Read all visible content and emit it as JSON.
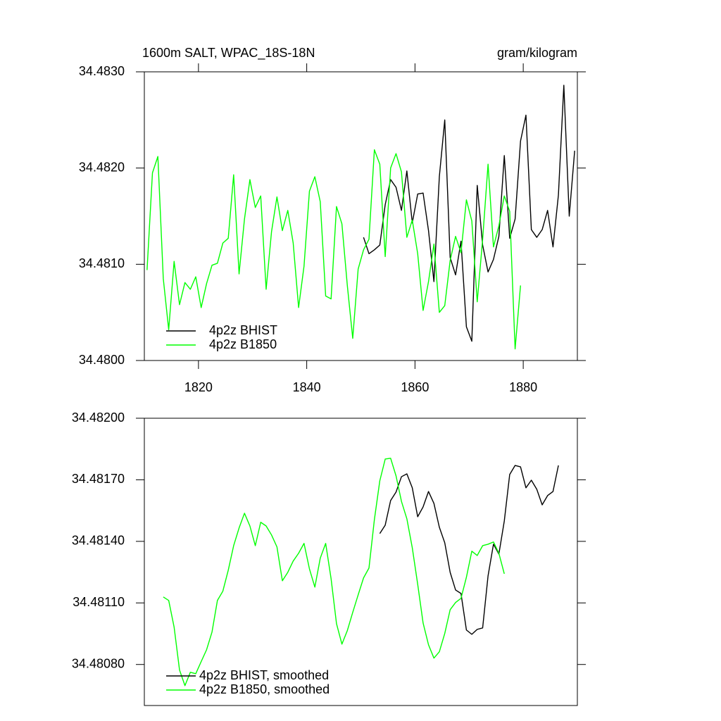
{
  "chart_data": [
    {
      "type": "line",
      "title": "1600m SALT, WPAC_18S-18N",
      "units": "gram/kilogram",
      "xlim": [
        1810,
        1890
      ],
      "xticks": [
        1820,
        1840,
        1860,
        1880
      ],
      "ylim": [
        34.48,
        34.483
      ],
      "yticks": [
        {
          "value": 34.48,
          "label": "34.4800"
        },
        {
          "value": 34.481,
          "label": "34.4810"
        },
        {
          "value": 34.482,
          "label": "34.4820"
        },
        {
          "value": 34.483,
          "label": "34.4830"
        }
      ],
      "legend": "lower left",
      "series": [
        {
          "name": "4p2z BHIST",
          "color": "#000000",
          "x": [
            1850.5,
            1851.5,
            1852.5,
            1853.5,
            1854.5,
            1855.5,
            1856.5,
            1857.5,
            1858.5,
            1859.5,
            1860.5,
            1861.5,
            1862.5,
            1863.5,
            1864.5,
            1865.5,
            1866.5,
            1867.5,
            1868.5,
            1869.5,
            1870.5,
            1871.5,
            1872.5,
            1873.5,
            1874.5,
            1875.5,
            1876.5,
            1877.5,
            1878.5,
            1879.5,
            1880.5,
            1881.5,
            1882.5,
            1883.5,
            1884.5,
            1885.5,
            1886.5,
            1887.5,
            1888.5,
            1889.5
          ],
          "values": [
            34.48128,
            34.48111,
            34.48115,
            34.4812,
            34.48162,
            34.48188,
            34.4818,
            34.48156,
            34.48197,
            34.48143,
            34.48173,
            34.48174,
            34.48135,
            34.48082,
            34.48191,
            34.4825,
            34.48107,
            34.48089,
            34.48124,
            34.48035,
            34.4802,
            34.48182,
            34.4812,
            34.48092,
            34.48105,
            34.48129,
            34.48213,
            34.48127,
            34.48147,
            34.48228,
            34.48255,
            34.48136,
            34.48128,
            34.48136,
            34.48156,
            34.48118,
            34.48172,
            34.48286,
            34.4815,
            34.48218
          ]
        },
        {
          "name": "4p2z B1850",
          "color": "#00ff00",
          "x": [
            1810.5,
            1811.5,
            1812.5,
            1813.5,
            1814.5,
            1815.5,
            1816.5,
            1817.5,
            1818.5,
            1819.5,
            1820.5,
            1821.5,
            1822.5,
            1823.5,
            1824.5,
            1825.5,
            1826.5,
            1827.5,
            1828.5,
            1829.5,
            1830.5,
            1831.5,
            1832.5,
            1833.5,
            1834.5,
            1835.5,
            1836.5,
            1837.5,
            1838.5,
            1839.5,
            1840.5,
            1841.5,
            1842.5,
            1843.5,
            1844.5,
            1845.5,
            1846.5,
            1847.5,
            1848.5,
            1849.5,
            1850.5,
            1851.5,
            1852.5,
            1853.5,
            1854.5,
            1855.5,
            1856.5,
            1857.5,
            1858.5,
            1859.5,
            1860.5,
            1861.5,
            1862.5,
            1863.5,
            1864.5,
            1865.5,
            1866.5,
            1867.5,
            1868.5,
            1869.5,
            1870.5,
            1871.5,
            1872.5,
            1873.5,
            1874.5,
            1875.5,
            1876.5,
            1877.5,
            1878.5,
            1879.5
          ],
          "values": [
            34.48094,
            34.48195,
            34.48212,
            34.48085,
            34.48032,
            34.48103,
            34.48058,
            34.48081,
            34.48074,
            34.48087,
            34.48055,
            34.4808,
            34.48099,
            34.48101,
            34.48122,
            34.48127,
            34.48193,
            34.4809,
            34.48147,
            34.48188,
            34.48159,
            34.48171,
            34.48074,
            34.48134,
            34.4817,
            34.48135,
            34.48156,
            34.48122,
            34.48055,
            34.48098,
            34.48176,
            34.48191,
            34.48165,
            34.48067,
            34.48064,
            34.4816,
            34.48142,
            34.48078,
            34.48023,
            34.48095,
            34.48115,
            34.48126,
            34.48219,
            34.48204,
            34.48108,
            34.482,
            34.48215,
            34.48196,
            34.48128,
            34.48146,
            34.48111,
            34.48052,
            34.48082,
            34.48121,
            34.4805,
            34.48057,
            34.48104,
            34.48129,
            34.48112,
            34.48167,
            34.48145,
            34.48061,
            34.48126,
            34.48204,
            34.48118,
            34.4814,
            34.48171,
            34.48155,
            34.48012,
            34.48078
          ]
        }
      ]
    },
    {
      "type": "line",
      "xlim": [
        1810,
        1890
      ],
      "ylim": [
        34.4806,
        34.482
      ],
      "yticks": [
        {
          "value": 34.4808,
          "label": "34.48080"
        },
        {
          "value": 34.4811,
          "label": "34.48110"
        },
        {
          "value": 34.4814,
          "label": "34.48140"
        },
        {
          "value": 34.4817,
          "label": "34.48170"
        },
        {
          "value": 34.482,
          "label": "34.48200"
        }
      ],
      "legend": "lower left",
      "series": [
        {
          "name": "4p2z BHIST, smoothed",
          "color": "#000000",
          "x": [
            1853.5,
            1854.5,
            1855.5,
            1856.5,
            1857.5,
            1858.5,
            1859.5,
            1860.5,
            1861.5,
            1862.5,
            1863.5,
            1864.5,
            1865.5,
            1866.5,
            1867.5,
            1868.5,
            1869.5,
            1870.5,
            1871.5,
            1872.5,
            1873.5,
            1874.5,
            1875.5,
            1876.5,
            1877.5,
            1878.5,
            1879.5,
            1880.5,
            1881.5,
            1882.5,
            1883.5,
            1884.5,
            1885.5,
            1886.5
          ],
          "values": [
            34.481438,
            34.481479,
            34.481599,
            34.48164,
            34.481715,
            34.481729,
            34.481661,
            34.48152,
            34.481568,
            34.481643,
            34.481585,
            34.481469,
            34.481393,
            34.481249,
            34.481163,
            34.481146,
            34.480968,
            34.480947,
            34.480971,
            34.480978,
            34.481232,
            34.481386,
            34.481338,
            34.481499,
            34.481726,
            34.48177,
            34.481763,
            34.481661,
            34.481698,
            34.481654,
            34.481578,
            34.481623,
            34.481643,
            34.48177
          ]
        },
        {
          "name": "4p2z B1850, smoothed",
          "color": "#00ff00",
          "x": [
            1813.5,
            1814.5,
            1815.5,
            1816.5,
            1817.5,
            1818.5,
            1819.5,
            1820.5,
            1821.5,
            1822.5,
            1823.5,
            1824.5,
            1825.5,
            1826.5,
            1827.5,
            1828.5,
            1829.5,
            1830.5,
            1831.5,
            1832.5,
            1833.5,
            1834.5,
            1835.5,
            1836.5,
            1837.5,
            1838.5,
            1839.5,
            1840.5,
            1841.5,
            1842.5,
            1843.5,
            1844.5,
            1845.5,
            1846.5,
            1847.5,
            1848.5,
            1849.5,
            1850.5,
            1851.5,
            1852.5,
            1853.5,
            1854.5,
            1855.5,
            1856.5,
            1857.5,
            1858.5,
            1859.5,
            1860.5,
            1861.5,
            1862.5,
            1863.5,
            1864.5,
            1865.5,
            1866.5,
            1867.5,
            1868.5,
            1869.5,
            1870.5,
            1871.5,
            1872.5,
            1873.5,
            1874.5,
            1875.5,
            1876.5
          ],
          "values": [
            34.481129,
            34.481112,
            34.480982,
            34.480773,
            34.480697,
            34.480762,
            34.480755,
            34.480814,
            34.480872,
            34.480958,
            34.481112,
            34.481157,
            34.481259,
            34.481379,
            34.481465,
            34.481537,
            34.481475,
            34.481379,
            34.481493,
            34.481475,
            34.481431,
            34.481373,
            34.481208,
            34.481249,
            34.481304,
            34.481342,
            34.48139,
            34.481266,
            34.481177,
            34.481318,
            34.48139,
            34.481218,
            34.480999,
            34.480899,
            34.480965,
            34.481054,
            34.481139,
            34.481222,
            34.48127,
            34.481506,
            34.481695,
            34.481801,
            34.481805,
            34.481719,
            34.481595,
            34.48151,
            34.481369,
            34.481191,
            34.481002,
            34.480896,
            34.480831,
            34.480862,
            34.480951,
            34.481067,
            34.481102,
            34.481122,
            34.481225,
            34.481352,
            34.481331,
            34.481379,
            34.481386,
            34.481397,
            34.481342,
            34.481242
          ]
        }
      ]
    }
  ]
}
